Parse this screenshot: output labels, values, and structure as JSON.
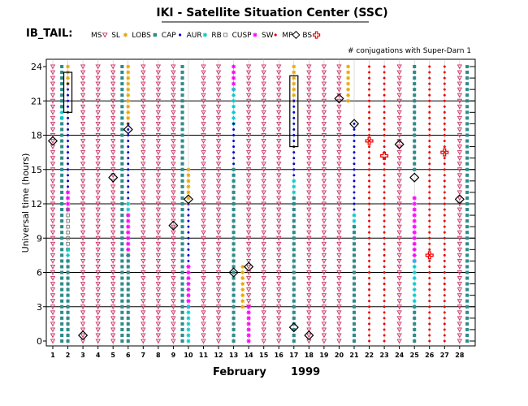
{
  "chart_data": {
    "type": "scatter",
    "title": "IKI - Satellite Situation Center (SSC)",
    "subtitle": "IB_TAIL:",
    "conjugation_note": "# conjugations with Super-Darn 1",
    "xlabel_month": "February",
    "xlabel_year": "1999",
    "ylabel": "Universal time (hours)",
    "xlim": [
      1,
      28
    ],
    "ylim": [
      0,
      24
    ],
    "x_ticks": [
      1,
      2,
      3,
      4,
      5,
      6,
      7,
      8,
      9,
      10,
      11,
      12,
      13,
      14,
      15,
      16,
      17,
      18,
      19,
      20,
      21,
      22,
      23,
      24,
      25,
      26,
      27,
      28
    ],
    "y_ticks": [
      0,
      3,
      6,
      9,
      12,
      15,
      18,
      21,
      24
    ],
    "legend": [
      {
        "label": "MS",
        "marker": "tri-down",
        "color": "#cc3366"
      },
      {
        "label": "SL",
        "marker": "star",
        "color": "#e8a800"
      },
      {
        "label": "LOBS",
        "marker": "square",
        "color": "#2e8b8b"
      },
      {
        "label": "CAP",
        "marker": "dot",
        "color": "#0000cc"
      },
      {
        "label": "AUR",
        "marker": "star",
        "color": "#00cccc"
      },
      {
        "label": "RB",
        "marker": "open-square",
        "color": "#777777"
      },
      {
        "label": "CUSP",
        "marker": "star",
        "color": "#ff00ff"
      },
      {
        "label": "SW",
        "marker": "dot",
        "color": "#ee0000"
      },
      {
        "label": "MP",
        "marker": "diamond",
        "color": "#000000"
      },
      {
        "label": "BS",
        "marker": "cross",
        "color": "#ee0000"
      }
    ],
    "region_colors": {
      "MS": "#cc3366",
      "SL": "#e8a800",
      "LOBS": "#2e8b8b",
      "CAP": "#0000cc",
      "AUR": "#00cccc",
      "RB": "#777777",
      "CUSP": "#ff00ff",
      "SW": "#ee0000"
    },
    "days": [
      {
        "day": 1,
        "segments": [
          {
            "r": "MS",
            "f": 0,
            "t": 24
          }
        ]
      },
      {
        "day": 1.6,
        "segments": [
          {
            "r": "LOBS",
            "f": 0,
            "t": 19.5
          },
          {
            "r": "AUR",
            "f": 19.5,
            "t": 20.5
          },
          {
            "r": "LOBS",
            "f": 20.5,
            "t": 24
          }
        ]
      },
      {
        "day": 2,
        "segments": [
          {
            "r": "SL",
            "f": 22.5,
            "t": 24
          },
          {
            "r": "CAP",
            "f": 13,
            "t": 22.5
          },
          {
            "r": "CUSP",
            "f": 11.5,
            "t": 13
          },
          {
            "r": "RB",
            "f": 8,
            "t": 11.5
          },
          {
            "r": "AUR",
            "f": 7,
            "t": 8
          },
          {
            "r": "LOBS",
            "f": 0,
            "t": 7
          }
        ]
      },
      {
        "day": 3,
        "segments": [
          {
            "r": "MS",
            "f": 0,
            "t": 24
          }
        ]
      },
      {
        "day": 4,
        "segments": [
          {
            "r": "MS",
            "f": 0,
            "t": 24
          }
        ]
      },
      {
        "day": 5,
        "segments": [
          {
            "r": "MS",
            "f": 0,
            "t": 24
          }
        ]
      },
      {
        "day": 5.6,
        "segments": [
          {
            "r": "LOBS",
            "f": 0,
            "t": 24
          }
        ]
      },
      {
        "day": 6,
        "segments": [
          {
            "r": "SL",
            "f": 19,
            "t": 24
          },
          {
            "r": "CAP",
            "f": 12,
            "t": 19
          },
          {
            "r": "AUR",
            "f": 11,
            "t": 12
          },
          {
            "r": "CUSP",
            "f": 7.5,
            "t": 11
          },
          {
            "r": "LOBS",
            "f": 0,
            "t": 7.5
          }
        ]
      },
      {
        "day": 7,
        "segments": [
          {
            "r": "MS",
            "f": 0,
            "t": 24
          }
        ]
      },
      {
        "day": 8,
        "segments": [
          {
            "r": "MS",
            "f": 0,
            "t": 24
          }
        ]
      },
      {
        "day": 9,
        "segments": [
          {
            "r": "MS",
            "f": 0,
            "t": 24
          }
        ]
      },
      {
        "day": 9.6,
        "segments": [
          {
            "r": "LOBS",
            "f": 0,
            "t": 24
          }
        ]
      },
      {
        "day": 10,
        "segments": [
          {
            "r": "SL",
            "f": 12,
            "t": 15
          },
          {
            "r": "CAP",
            "f": 6.5,
            "t": 12
          },
          {
            "r": "CUSP",
            "f": 3,
            "t": 6.5
          },
          {
            "r": "AUR",
            "f": 0,
            "t": 3
          }
        ]
      },
      {
        "day": 11,
        "segments": [
          {
            "r": "MS",
            "f": 0,
            "t": 24
          }
        ]
      },
      {
        "day": 12,
        "segments": [
          {
            "r": "MS",
            "f": 0,
            "t": 24
          }
        ]
      },
      {
        "day": 13,
        "segments": [
          {
            "r": "CUSP",
            "f": 22,
            "t": 24
          },
          {
            "r": "AUR",
            "f": 19,
            "t": 22
          },
          {
            "r": "CAP",
            "f": 15,
            "t": 19
          },
          {
            "r": "LOBS",
            "f": 0,
            "t": 15
          }
        ]
      },
      {
        "day": 13.6,
        "segments": [
          {
            "r": "SL",
            "f": 3,
            "t": 6.5
          }
        ]
      },
      {
        "day": 14,
        "segments": [
          {
            "r": "MS",
            "f": 3,
            "t": 24
          },
          {
            "r": "CUSP",
            "f": 0,
            "t": 3
          }
        ]
      },
      {
        "day": 15,
        "segments": [
          {
            "r": "MS",
            "f": 0,
            "t": 24
          }
        ]
      },
      {
        "day": 16,
        "segments": [
          {
            "r": "MS",
            "f": 0,
            "t": 24
          }
        ]
      },
      {
        "day": 17,
        "segments": [
          {
            "r": "SL",
            "f": 21,
            "t": 24
          },
          {
            "r": "CAP",
            "f": 14,
            "t": 21
          },
          {
            "r": "AUR",
            "f": 12.5,
            "t": 14
          },
          {
            "r": "LOBS",
            "f": 0,
            "t": 12.5
          }
        ]
      },
      {
        "day": 18,
        "segments": [
          {
            "r": "MS",
            "f": 0,
            "t": 24
          }
        ]
      },
      {
        "day": 19,
        "segments": [
          {
            "r": "MS",
            "f": 0,
            "t": 24
          }
        ]
      },
      {
        "day": 20,
        "segments": [
          {
            "r": "MS",
            "f": 0,
            "t": 24
          }
        ]
      },
      {
        "day": 20.6,
        "segments": [
          {
            "r": "SL",
            "f": 21,
            "t": 24
          }
        ]
      },
      {
        "day": 21,
        "segments": [
          {
            "r": "CAP",
            "f": 11,
            "t": 19
          },
          {
            "r": "AUR",
            "f": 10,
            "t": 11
          },
          {
            "r": "LOBS",
            "f": 0,
            "t": 10
          }
        ]
      },
      {
        "day": 22,
        "segments": [
          {
            "r": "SW",
            "f": 0,
            "t": 24
          }
        ]
      },
      {
        "day": 23,
        "segments": [
          {
            "r": "SW",
            "f": 0,
            "t": 24
          }
        ]
      },
      {
        "day": 24,
        "segments": [
          {
            "r": "MS",
            "f": 0,
            "t": 24
          }
        ]
      },
      {
        "day": 25,
        "segments": [
          {
            "r": "CUSP",
            "f": 7,
            "t": 12.5
          },
          {
            "r": "AUR",
            "f": 3,
            "t": 7
          },
          {
            "r": "LOBS",
            "f": 0,
            "t": 3
          },
          {
            "r": "LOBS",
            "f": 15,
            "t": 24
          }
        ]
      },
      {
        "day": 26,
        "segments": [
          {
            "r": "SW",
            "f": 0,
            "t": 24
          }
        ]
      },
      {
        "day": 27,
        "segments": [
          {
            "r": "SW",
            "f": 0,
            "t": 24
          }
        ]
      },
      {
        "day": 28,
        "segments": [
          {
            "r": "MS",
            "f": 0,
            "t": 24
          }
        ]
      },
      {
        "day": 28.5,
        "segments": [
          {
            "r": "LOBS",
            "f": 0,
            "t": 24
          }
        ]
      }
    ],
    "mp_crossings": [
      {
        "x": 1,
        "y": 17.5
      },
      {
        "x": 3,
        "y": 0.5
      },
      {
        "x": 5,
        "y": 14.3
      },
      {
        "x": 6,
        "y": 18.5
      },
      {
        "x": 9,
        "y": 10.1
      },
      {
        "x": 10,
        "y": 12.4
      },
      {
        "x": 13,
        "y": 6
      },
      {
        "x": 14,
        "y": 6.5
      },
      {
        "x": 17,
        "y": 1.2
      },
      {
        "x": 18,
        "y": 0.5
      },
      {
        "x": 20,
        "y": 21.2
      },
      {
        "x": 21,
        "y": 19
      },
      {
        "x": 24,
        "y": 17.2
      },
      {
        "x": 25,
        "y": 14.3
      },
      {
        "x": 28,
        "y": 12.4
      }
    ],
    "bs_crossings": [
      {
        "x": 22,
        "y": 17.5
      },
      {
        "x": 23,
        "y": 16.2
      },
      {
        "x": 26,
        "y": 7.5
      },
      {
        "x": 27,
        "y": 16.5
      }
    ],
    "conjugations": [
      {
        "day": 2,
        "from": 20,
        "to": 23.5
      },
      {
        "day": 17,
        "from": 17,
        "to": 23.2
      }
    ]
  }
}
